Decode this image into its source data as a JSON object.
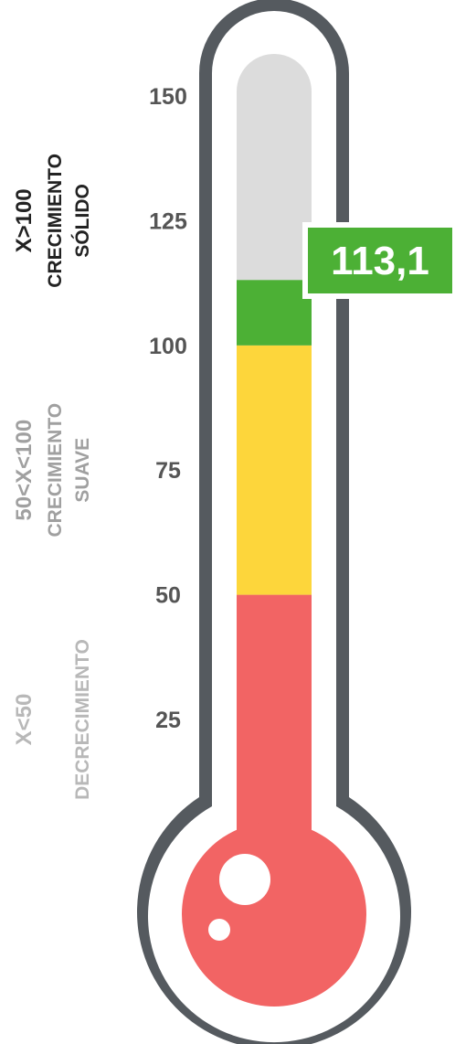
{
  "chart_data": {
    "type": "thermometer",
    "value": 113.1,
    "value_label": "113,1",
    "scale": {
      "min": 0,
      "max": 150
    },
    "ticks": [
      "150",
      "125",
      "100",
      "75",
      "50",
      "25"
    ],
    "tick_values": [
      150,
      125,
      100,
      75,
      50,
      25
    ],
    "bands": [
      {
        "from": 0,
        "to": 50,
        "color": "#f26464",
        "lines": [
          "X<50",
          "DECRECIMIENTO"
        ],
        "label_color": "#b8b8b8"
      },
      {
        "from": 50,
        "to": 100,
        "color": "#fdd63b",
        "lines": [
          "50<X<100",
          "CRECIMIENTO",
          "SUAVE"
        ],
        "label_color": "#a0a0a0"
      },
      {
        "from": 100,
        "to": 150,
        "color": "#4cb035",
        "lines": [
          "X>100",
          "CRECIMIENTO",
          "SÓLIDO"
        ],
        "label_color": "#222222"
      }
    ],
    "colors": {
      "outline": "#555a5f",
      "empty_tube": "#dcdcdc",
      "tick_text": "#555555",
      "badge": "#4cb035",
      "badge_text": "#ffffff"
    }
  }
}
